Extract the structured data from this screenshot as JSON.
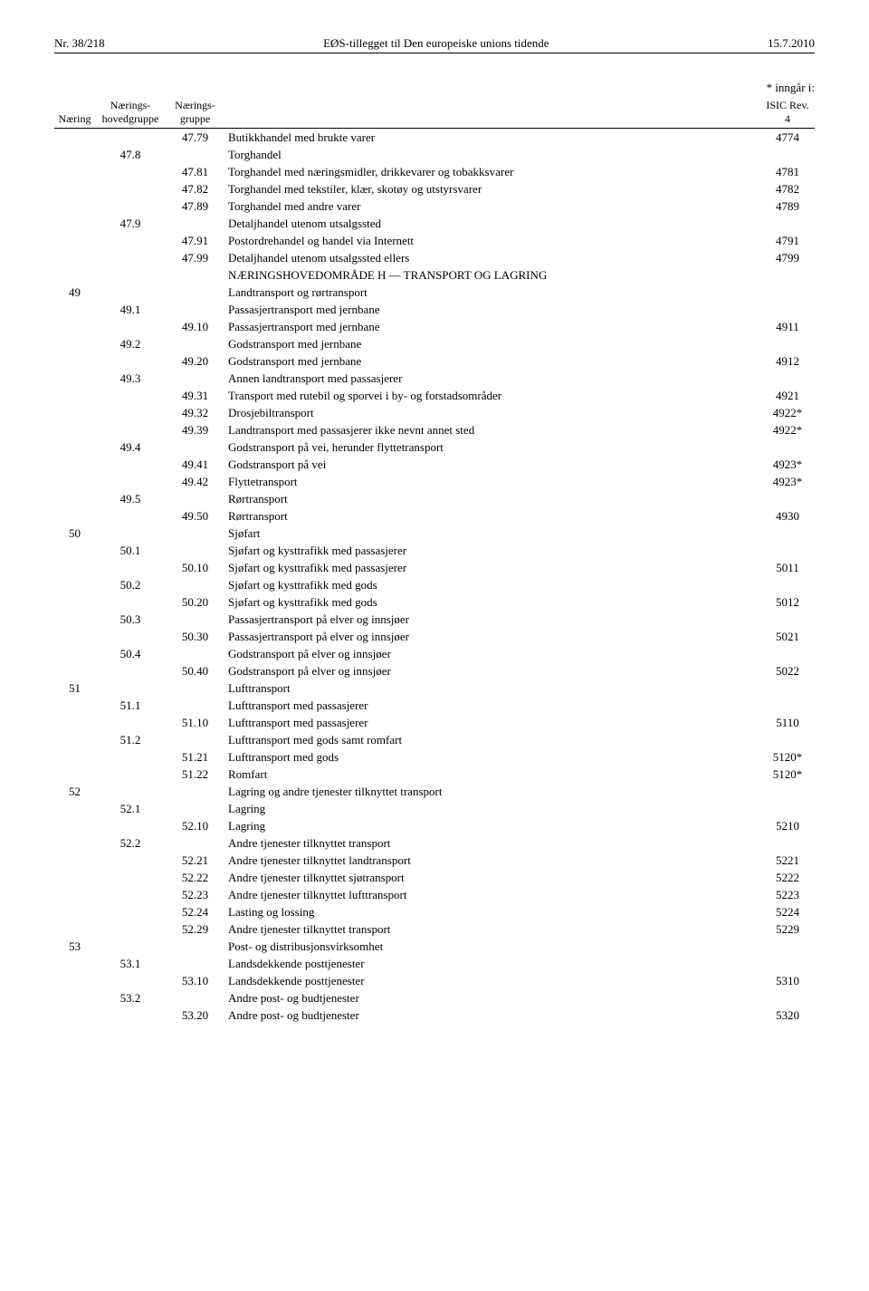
{
  "header": {
    "left": "Nr. 38/218",
    "center": "EØS-tillegget til Den europeiske unions tidende",
    "right": "15.7.2010"
  },
  "table_note": "* inngår i:",
  "columns": {
    "naering": "Næring",
    "hoved": "Nærings-\nhovedgruppe",
    "gruppe": "Nærings-\ngruppe",
    "isic": "ISIC\nRev. 4"
  },
  "rows": [
    {
      "gruppe": "47.79",
      "desc": "Butikkhandel med brukte varer",
      "isic": "4774"
    },
    {
      "hoved": "47.8",
      "desc": "Torghandel"
    },
    {
      "gruppe": "47.81",
      "desc": "Torghandel med næringsmidler, drikkevarer og tobakksvarer",
      "isic": "4781"
    },
    {
      "gruppe": "47.82",
      "desc": "Torghandel med tekstiler, klær, skotøy og utstyrsvarer",
      "isic": "4782"
    },
    {
      "gruppe": "47.89",
      "desc": "Torghandel med andre varer",
      "isic": "4789"
    },
    {
      "hoved": "47.9",
      "desc": "Detaljhandel utenom utsalgssted"
    },
    {
      "gruppe": "47.91",
      "desc": "Postordrehandel og handel via Internett",
      "isic": "4791"
    },
    {
      "gruppe": "47.99",
      "desc": "Detaljhandel utenom utsalgssted ellers",
      "isic": "4799"
    },
    {
      "desc": "NÆRINGSHOVEDOMRÅDE H — TRANSPORT OG LAGRING"
    },
    {
      "naering": "49",
      "desc": "Landtransport og rørtransport"
    },
    {
      "hoved": "49.1",
      "desc": "Passasjertransport med jernbane"
    },
    {
      "gruppe": "49.10",
      "desc": "Passasjertransport med jernbane",
      "isic": "4911"
    },
    {
      "hoved": "49.2",
      "desc": "Godstransport med jernbane"
    },
    {
      "gruppe": "49.20",
      "desc": "Godstransport med jernbane",
      "isic": "4912"
    },
    {
      "hoved": "49.3",
      "desc": "Annen landtransport med passasjerer"
    },
    {
      "gruppe": "49.31",
      "desc": "Transport med rutebil og sporvei i by- og forstadsområder",
      "isic": "4921"
    },
    {
      "gruppe": "49.32",
      "desc": "Drosjebiltransport",
      "isic": "4922*"
    },
    {
      "gruppe": "49.39",
      "desc": "Landtransport med passasjerer ikke nevnt annet sted",
      "isic": "4922*"
    },
    {
      "hoved": "49.4",
      "desc": "Godstransport på vei, herunder flyttetransport"
    },
    {
      "gruppe": "49.41",
      "desc": "Godstransport på vei",
      "isic": "4923*"
    },
    {
      "gruppe": "49.42",
      "desc": "Flyttetransport",
      "isic": "4923*"
    },
    {
      "hoved": "49.5",
      "desc": "Rørtransport"
    },
    {
      "gruppe": "49.50",
      "desc": "Rørtransport",
      "isic": "4930"
    },
    {
      "naering": "50",
      "desc": "Sjøfart"
    },
    {
      "hoved": "50.1",
      "desc": "Sjøfart og kysttrafikk med passasjerer"
    },
    {
      "gruppe": "50.10",
      "desc": "Sjøfart og kysttrafikk med passasjerer",
      "isic": "5011"
    },
    {
      "hoved": "50.2",
      "desc": "Sjøfart og kysttrafikk med gods"
    },
    {
      "gruppe": "50.20",
      "desc": "Sjøfart og kysttrafikk med gods",
      "isic": "5012"
    },
    {
      "hoved": "50.3",
      "desc": "Passasjertransport på elver og innsjøer"
    },
    {
      "gruppe": "50.30",
      "desc": "Passasjertransport på elver og innsjøer",
      "isic": "5021"
    },
    {
      "hoved": "50.4",
      "desc": "Godstransport på elver og innsjøer"
    },
    {
      "gruppe": "50.40",
      "desc": "Godstransport på elver og innsjøer",
      "isic": "5022"
    },
    {
      "naering": "51",
      "desc": "Lufttransport"
    },
    {
      "hoved": "51.1",
      "desc": "Lufttransport med passasjerer"
    },
    {
      "gruppe": "51.10",
      "desc": "Lufttransport med passasjerer",
      "isic": "5110"
    },
    {
      "hoved": "51.2",
      "desc": "Lufttransport med gods samt romfart"
    },
    {
      "gruppe": "51.21",
      "desc": "Lufttransport med gods",
      "isic": "5120*"
    },
    {
      "gruppe": "51.22",
      "desc": "Romfart",
      "isic": "5120*"
    },
    {
      "naering": "52",
      "desc": "Lagring og andre tjenester tilknyttet transport"
    },
    {
      "hoved": "52.1",
      "desc": "Lagring"
    },
    {
      "gruppe": "52.10",
      "desc": "Lagring",
      "isic": "5210"
    },
    {
      "hoved": "52.2",
      "desc": "Andre tjenester tilknyttet transport"
    },
    {
      "gruppe": "52.21",
      "desc": "Andre tjenester tilknyttet landtransport",
      "isic": "5221"
    },
    {
      "gruppe": "52.22",
      "desc": "Andre tjenester tilknyttet sjøtransport",
      "isic": "5222"
    },
    {
      "gruppe": "52.23",
      "desc": "Andre tjenester tilknyttet lufttransport",
      "isic": "5223"
    },
    {
      "gruppe": "52.24",
      "desc": "Lasting og lossing",
      "isic": "5224"
    },
    {
      "gruppe": "52.29",
      "desc": "Andre tjenester tilknyttet transport",
      "isic": "5229"
    },
    {
      "naering": "53",
      "desc": "Post- og distribusjonsvirksomhet"
    },
    {
      "hoved": "53.1",
      "desc": "Landsdekkende posttjenester"
    },
    {
      "gruppe": "53.10",
      "desc": "Landsdekkende posttjenester",
      "isic": "5310"
    },
    {
      "hoved": "53.2",
      "desc": "Andre post- og budtjenester"
    },
    {
      "gruppe": "53.20",
      "desc": "Andre post- og budtjenester",
      "isic": "5320"
    }
  ]
}
